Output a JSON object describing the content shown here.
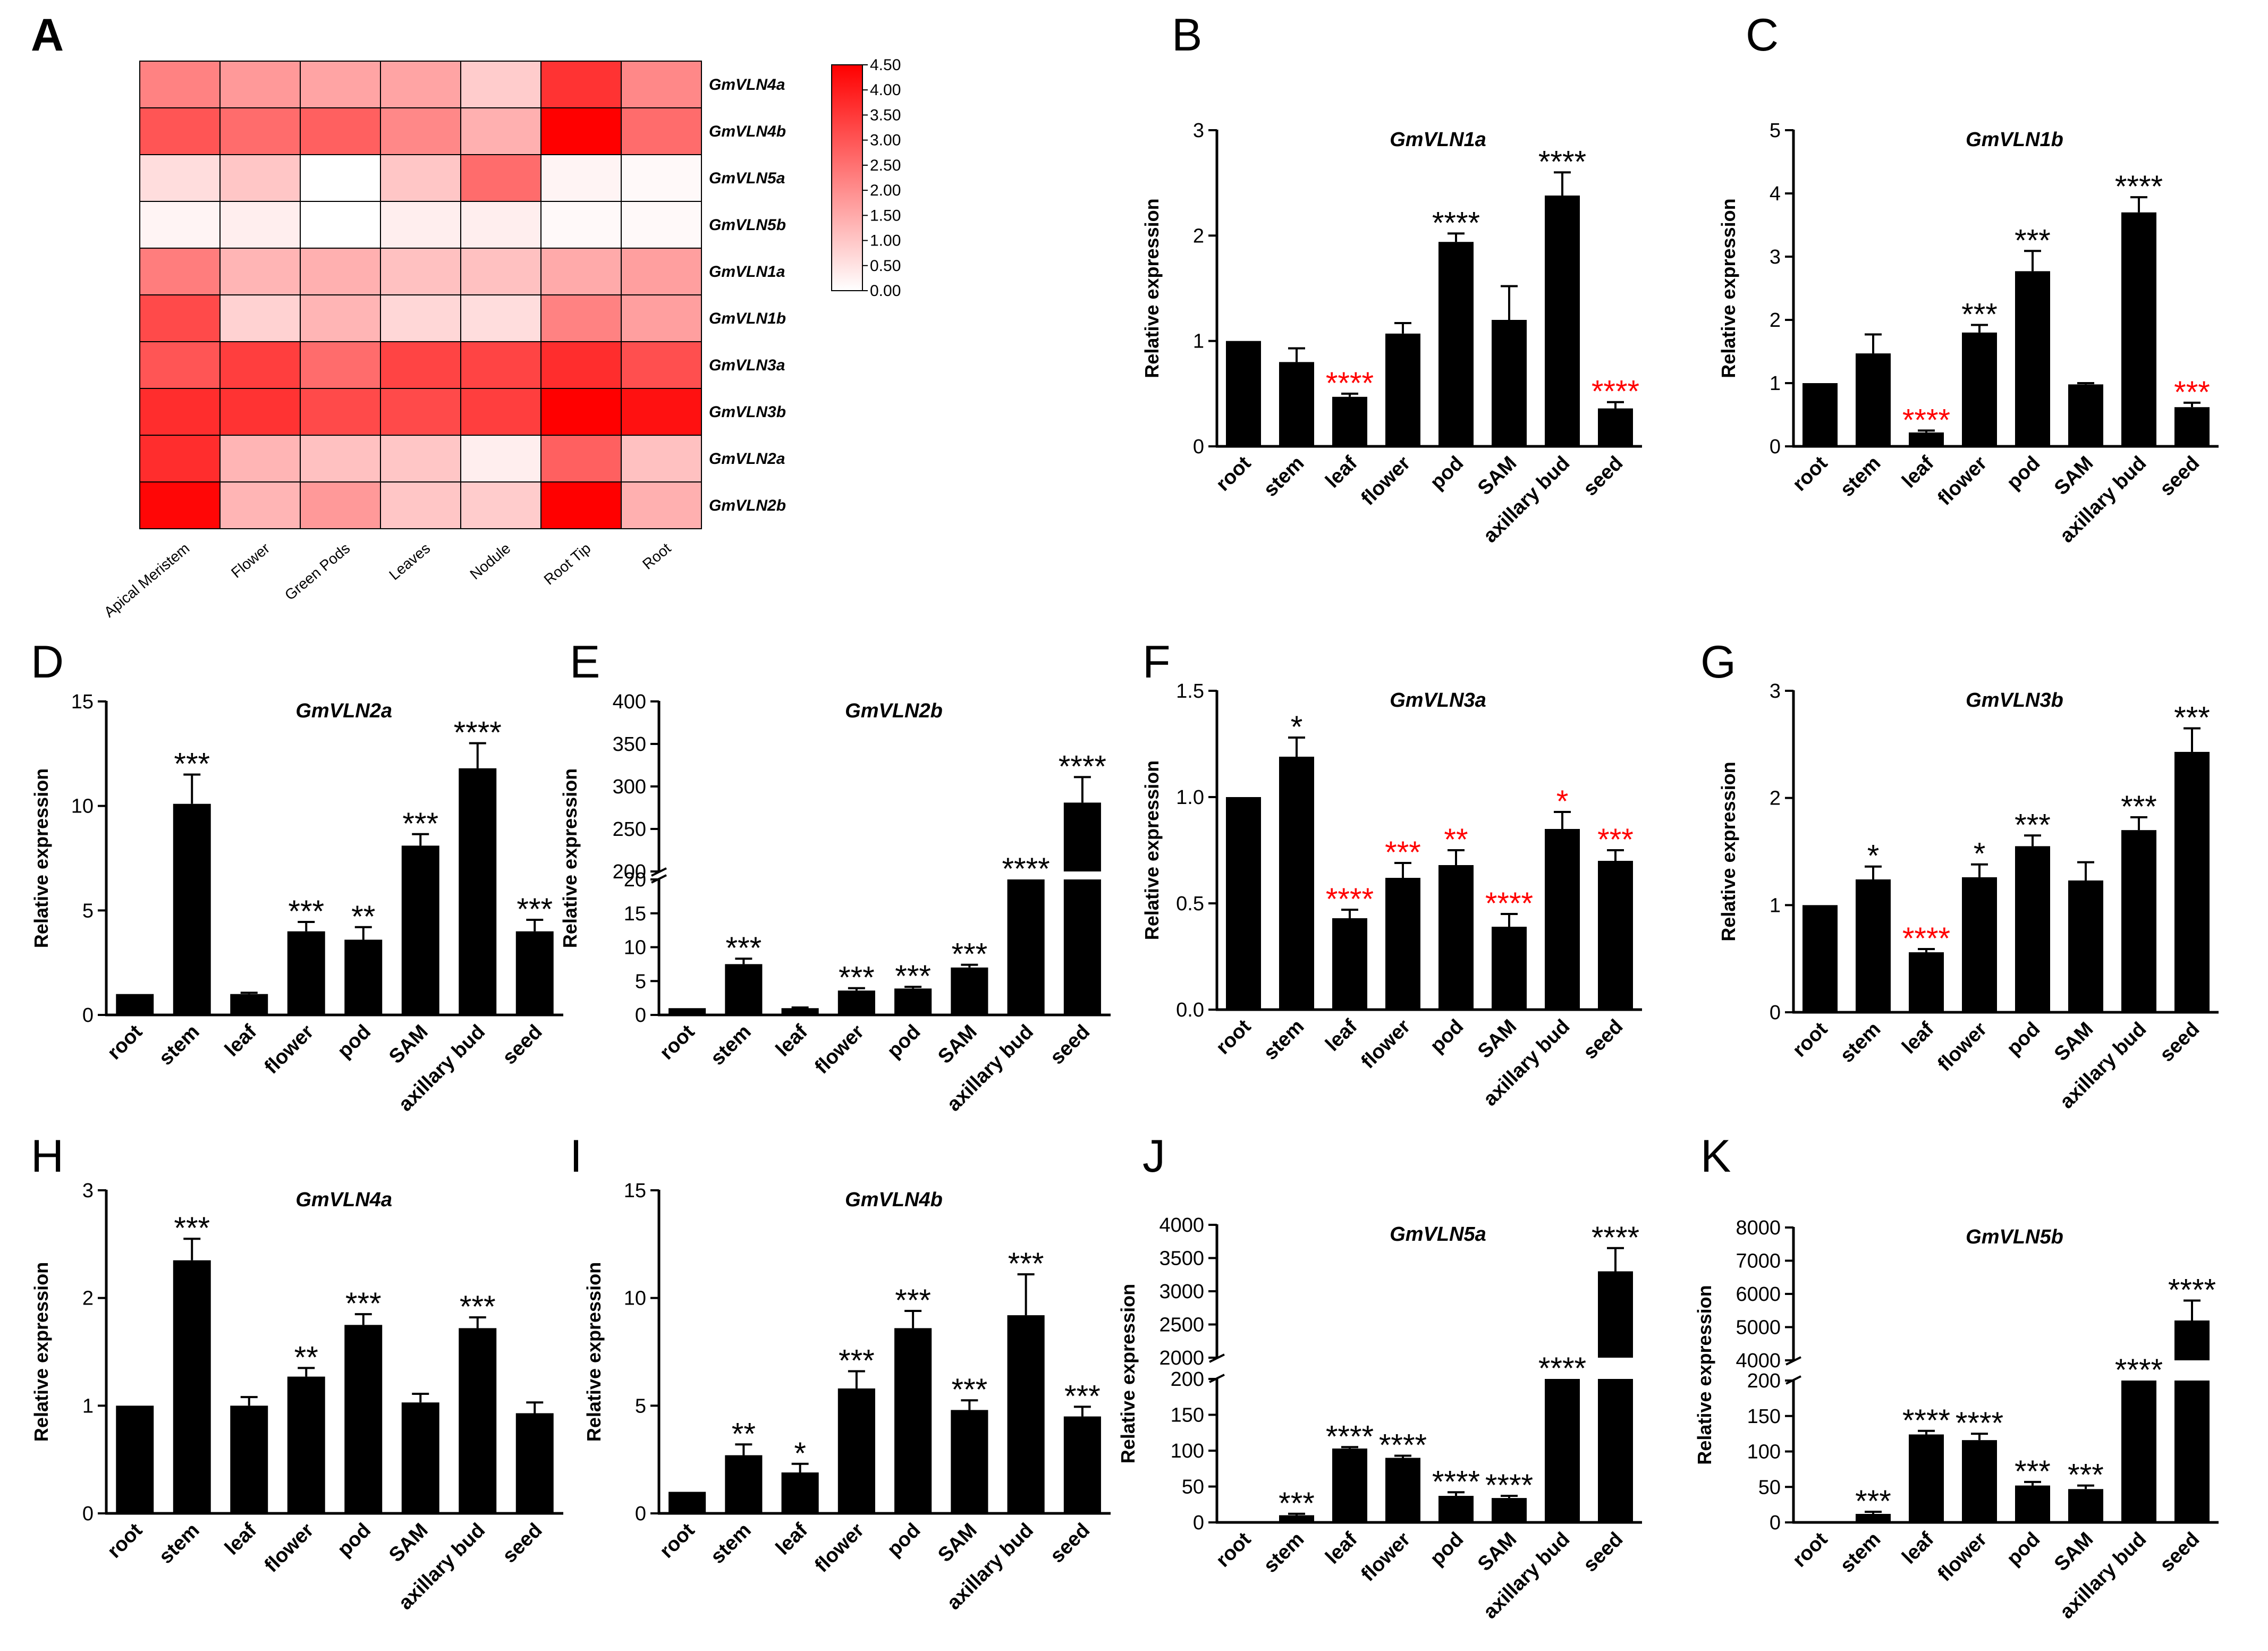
{
  "figure": {
    "categories": [
      "root",
      "stem",
      "leaf",
      "flower",
      "pod",
      "SAM",
      "axillary bud",
      "seed"
    ],
    "ylabel": "Relative expression",
    "accent_red": "#ff0000",
    "bar_color": "#000000"
  },
  "heatmap": {
    "panel": "A",
    "rows": [
      "GmVLN4a",
      "GmVLN4b",
      "GmVLN5a",
      "GmVLN5b",
      "GmVLN1a",
      "GmVLN1b",
      "GmVLN3a",
      "GmVLN3b",
      "GmVLN2a",
      "GmVLN2b"
    ],
    "columns": [
      "Apical Meristem",
      "Flower",
      "Green Pods",
      "Leaves",
      "Nodule",
      "Root Tip",
      "Root"
    ],
    "values": [
      [
        2.2,
        1.8,
        1.6,
        1.6,
        0.9,
        3.6,
        2.1
      ],
      [
        3.0,
        2.6,
        2.8,
        2.1,
        1.4,
        4.5,
        2.6
      ],
      [
        0.6,
        1.0,
        0.0,
        1.0,
        2.6,
        0.2,
        0.1
      ],
      [
        0.2,
        0.3,
        0.0,
        0.3,
        0.3,
        0.1,
        0.1
      ],
      [
        2.3,
        1.3,
        1.4,
        1.1,
        1.1,
        1.5,
        1.7
      ],
      [
        3.2,
        0.8,
        1.3,
        0.7,
        0.6,
        2.2,
        1.7
      ],
      [
        3.0,
        3.4,
        2.6,
        3.3,
        3.3,
        3.7,
        3.1
      ],
      [
        3.7,
        3.6,
        3.2,
        3.2,
        3.4,
        4.5,
        4.2
      ],
      [
        3.7,
        1.3,
        1.1,
        1.0,
        0.3,
        2.8,
        1.1
      ],
      [
        4.4,
        1.3,
        1.8,
        1.0,
        0.9,
        4.5,
        1.4
      ]
    ],
    "colorbar_ticks": [
      "4.50",
      "4.00",
      "3.50",
      "3.00",
      "2.50",
      "2.00",
      "1.50",
      "1.00",
      "0.50",
      "0.00"
    ],
    "range": [
      0,
      4.5
    ],
    "color_low": "#ffffff",
    "color_high": "#ff0000"
  },
  "chart_data": [
    {
      "panel": "B",
      "type": "bar",
      "title": "GmVLN1a",
      "ylim": [
        0,
        3
      ],
      "yticks": [
        "0",
        "1",
        "2",
        "3"
      ],
      "values": [
        1.0,
        0.8,
        0.47,
        1.07,
        1.94,
        1.2,
        2.38,
        0.36
      ],
      "errors": [
        0,
        0.13,
        0.03,
        0.1,
        0.08,
        0.32,
        0.22,
        0.06
      ],
      "sig": [
        "",
        "",
        "****",
        "",
        "****",
        "",
        "****",
        "****"
      ],
      "sig_color": [
        "",
        "",
        "red",
        "",
        "black",
        "",
        "black",
        "red"
      ]
    },
    {
      "panel": "C",
      "type": "bar",
      "title": "GmVLN1b",
      "ylim": [
        0,
        5
      ],
      "yticks": [
        "0",
        "1",
        "2",
        "3",
        "4",
        "5"
      ],
      "values": [
        1.0,
        1.47,
        0.22,
        1.8,
        2.77,
        0.98,
        3.7,
        0.62
      ],
      "errors": [
        0,
        0.3,
        0.03,
        0.12,
        0.32,
        0.02,
        0.24,
        0.07
      ],
      "sig": [
        "",
        "",
        "****",
        "***",
        "***",
        "",
        "****",
        "***"
      ],
      "sig_color": [
        "",
        "",
        "red",
        "black",
        "black",
        "",
        "black",
        "red"
      ]
    },
    {
      "panel": "D",
      "type": "bar",
      "title": "GmVLN2a",
      "ylim": [
        0,
        15
      ],
      "yticks": [
        "0",
        "5",
        "10",
        "15"
      ],
      "values": [
        1.0,
        10.1,
        1.0,
        4.0,
        3.6,
        8.1,
        11.8,
        4.0
      ],
      "errors": [
        0,
        1.4,
        0.06,
        0.45,
        0.6,
        0.55,
        1.2,
        0.55
      ],
      "sig": [
        "",
        "***",
        "",
        "***",
        "**",
        "***",
        "****",
        "***"
      ],
      "sig_color": [
        "",
        "black",
        "",
        "black",
        "black",
        "black",
        "black",
        "black"
      ]
    },
    {
      "panel": "E",
      "type": "bar",
      "title": "GmVLN2b",
      "ylim": [
        0,
        400
      ],
      "broken_axis": true,
      "yticks": [
        "0",
        "5",
        "10",
        "15",
        "20",
        "200",
        "250",
        "300",
        "350",
        "400"
      ],
      "values": [
        1.0,
        7.5,
        1.0,
        3.6,
        3.9,
        7.0,
        20,
        281
      ],
      "errors": [
        0,
        0.8,
        0.1,
        0.35,
        0.25,
        0.4,
        0,
        30
      ],
      "sig": [
        "",
        "***",
        "",
        "***",
        "***",
        "***",
        "****",
        "****"
      ],
      "sig_color": [
        "",
        "black",
        "",
        "black",
        "black",
        "black",
        "black",
        "black"
      ]
    },
    {
      "panel": "F",
      "type": "bar",
      "title": "GmVLN3a",
      "ylim": [
        0,
        1.5
      ],
      "yticks": [
        "0.0",
        "0.5",
        "1.0",
        "1.5"
      ],
      "values": [
        1.0,
        1.19,
        0.43,
        0.62,
        0.68,
        0.39,
        0.85,
        0.7
      ],
      "errors": [
        0,
        0.09,
        0.04,
        0.07,
        0.07,
        0.06,
        0.08,
        0.05
      ],
      "sig": [
        "",
        "*",
        "****",
        "***",
        "**",
        "****",
        "*",
        "***"
      ],
      "sig_color": [
        "",
        "black",
        "red",
        "red",
        "red",
        "red",
        "red",
        "red"
      ]
    },
    {
      "panel": "G",
      "type": "bar",
      "title": "GmVLN3b",
      "ylim": [
        0,
        3
      ],
      "yticks": [
        "0",
        "1",
        "2",
        "3"
      ],
      "values": [
        1.0,
        1.24,
        0.56,
        1.26,
        1.55,
        1.23,
        1.7,
        2.43
      ],
      "errors": [
        0,
        0.12,
        0.03,
        0.12,
        0.1,
        0.17,
        0.12,
        0.22
      ],
      "sig": [
        "",
        "*",
        "****",
        "*",
        "***",
        "",
        "***",
        "***"
      ],
      "sig_color": [
        "",
        "black",
        "red",
        "black",
        "black",
        "",
        "black",
        "black"
      ]
    },
    {
      "panel": "H",
      "type": "bar",
      "title": "GmVLN4a",
      "ylim": [
        0,
        3
      ],
      "yticks": [
        "0",
        "1",
        "2",
        "3"
      ],
      "values": [
        1.0,
        2.35,
        1.0,
        1.27,
        1.75,
        1.03,
        1.72,
        0.93
      ],
      "errors": [
        0,
        0.2,
        0.08,
        0.08,
        0.1,
        0.08,
        0.1,
        0.1
      ],
      "sig": [
        "",
        "***",
        "",
        "**",
        "***",
        "",
        "***",
        ""
      ],
      "sig_color": [
        "",
        "black",
        "",
        "black",
        "black",
        "",
        "black",
        ""
      ]
    },
    {
      "panel": "I",
      "type": "bar",
      "title": "GmVLN4b",
      "ylim": [
        0,
        15
      ],
      "yticks": [
        "0",
        "5",
        "10",
        "15"
      ],
      "values": [
        1.0,
        2.7,
        1.9,
        5.8,
        8.6,
        4.8,
        9.2,
        4.5
      ],
      "errors": [
        0,
        0.5,
        0.4,
        0.8,
        0.8,
        0.45,
        1.9,
        0.45
      ],
      "sig": [
        "",
        "**",
        "*",
        "***",
        "***",
        "***",
        "***",
        "***"
      ],
      "sig_color": [
        "",
        "black",
        "black",
        "black",
        "black",
        "black",
        "black",
        "black"
      ]
    },
    {
      "panel": "J",
      "type": "bar",
      "title": "GmVLN5a",
      "ylim": [
        0,
        4000
      ],
      "broken_axis": true,
      "yticks": [
        "0",
        "50",
        "100",
        "150",
        "200",
        "2000",
        "2500",
        "3000",
        "3500",
        "4000"
      ],
      "values": [
        1,
        10,
        103,
        90,
        37,
        34,
        200,
        3300
      ],
      "errors": [
        0,
        2,
        2,
        3,
        5,
        3,
        0,
        350
      ],
      "sig": [
        "",
        "***",
        "****",
        "****",
        "****",
        "****",
        "****",
        "****"
      ],
      "sig_color": [
        "",
        "black",
        "black",
        "black",
        "black",
        "black",
        "black",
        "black"
      ]
    },
    {
      "panel": "K",
      "type": "bar",
      "title": "GmVLN5b",
      "ylim": [
        0,
        8000
      ],
      "broken_axis": true,
      "yticks": [
        "0",
        "50",
        "100",
        "150",
        "200",
        "4000",
        "5000",
        "6000",
        "7000",
        "8000"
      ],
      "values": [
        1,
        12,
        124,
        116,
        52,
        47,
        200,
        5200
      ],
      "errors": [
        0,
        3,
        5,
        9,
        5,
        5,
        0,
        600
      ],
      "sig": [
        "",
        "***",
        "****",
        "****",
        "***",
        "***",
        "****",
        "****"
      ],
      "sig_color": [
        "",
        "black",
        "black",
        "black",
        "black",
        "black",
        "black",
        "black"
      ]
    }
  ]
}
